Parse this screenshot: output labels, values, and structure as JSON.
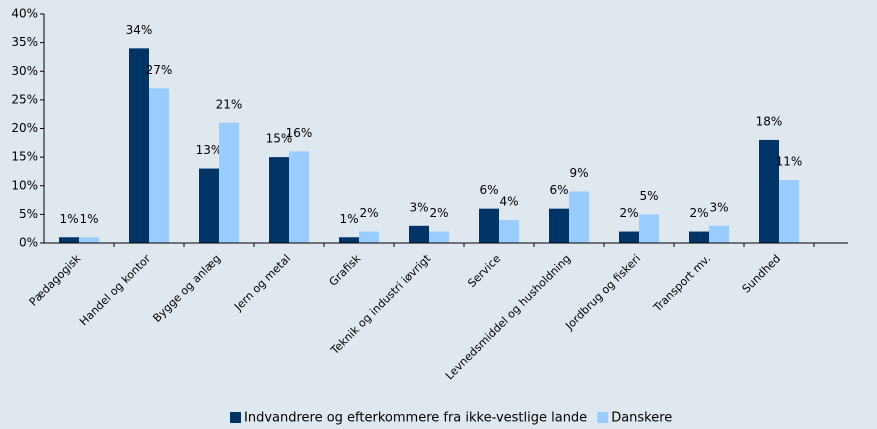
{
  "chart_data": {
    "type": "bar",
    "categories": [
      "Pædagogisk",
      "Handel og kontor",
      "Bygge og anlæg",
      "Jern og metal",
      "Grafisk",
      "Teknik og industri iøvrigt",
      "Service",
      "Levnedsmiddel og husholdning",
      "Jordbrug og fiskeri",
      "Transport mv.",
      "Sundhed"
    ],
    "series": [
      {
        "name": "Indvandrere og efterkommere fra ikke-vestlige lande",
        "color": "#003366",
        "values": [
          1,
          34,
          13,
          15,
          1,
          3,
          6,
          6,
          2,
          2,
          18
        ],
        "value_labels": [
          "1%",
          "34%",
          "13%",
          "15%",
          "1%",
          "3%",
          "6%",
          "6%",
          "2%",
          "2%",
          "18%"
        ]
      },
      {
        "name": "Danskere",
        "color": "#99ccff",
        "values": [
          1,
          27,
          21,
          16,
          2,
          2,
          4,
          9,
          5,
          3,
          11
        ],
        "value_labels": [
          "1%",
          "27%",
          "21%",
          "16%",
          "2%",
          "2%",
          "4%",
          "9%",
          "5%",
          "3%",
          "11%"
        ]
      }
    ],
    "ylim": [
      0,
      40
    ],
    "yticks": [
      {
        "value": 0,
        "label": "0%"
      },
      {
        "value": 5,
        "label": "5%"
      },
      {
        "value": 10,
        "label": "10%"
      },
      {
        "value": 15,
        "label": "15%"
      },
      {
        "value": 20,
        "label": "20%"
      },
      {
        "value": 25,
        "label": "25%"
      },
      {
        "value": 30,
        "label": "30%"
      },
      {
        "value": 35,
        "label": "35%"
      },
      {
        "value": 40,
        "label": "40%"
      }
    ],
    "legend": "bottom"
  }
}
